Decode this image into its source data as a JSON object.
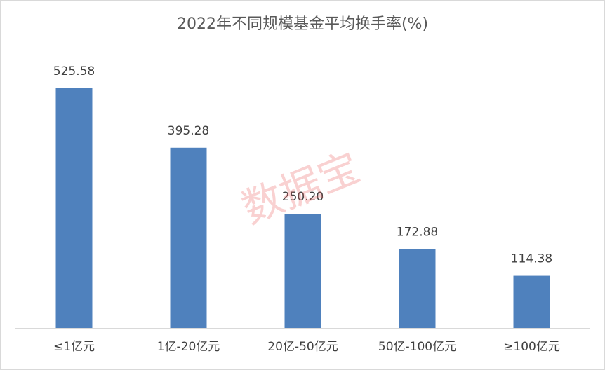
{
  "chart_data": {
    "type": "bar",
    "title": "2022年不同规模基金平均换手率(%)",
    "categories": [
      "≤1亿元",
      "1亿-20亿元",
      "20亿-50亿元",
      "50亿-100亿元",
      "≥100亿元"
    ],
    "values": [
      525.58,
      395.28,
      250.2,
      172.88,
      114.38
    ],
    "value_labels": [
      "525.58",
      "395.28",
      "250.20",
      "172.88",
      "114.38"
    ],
    "color": "#4f81bd",
    "watermark": "数据宝"
  }
}
